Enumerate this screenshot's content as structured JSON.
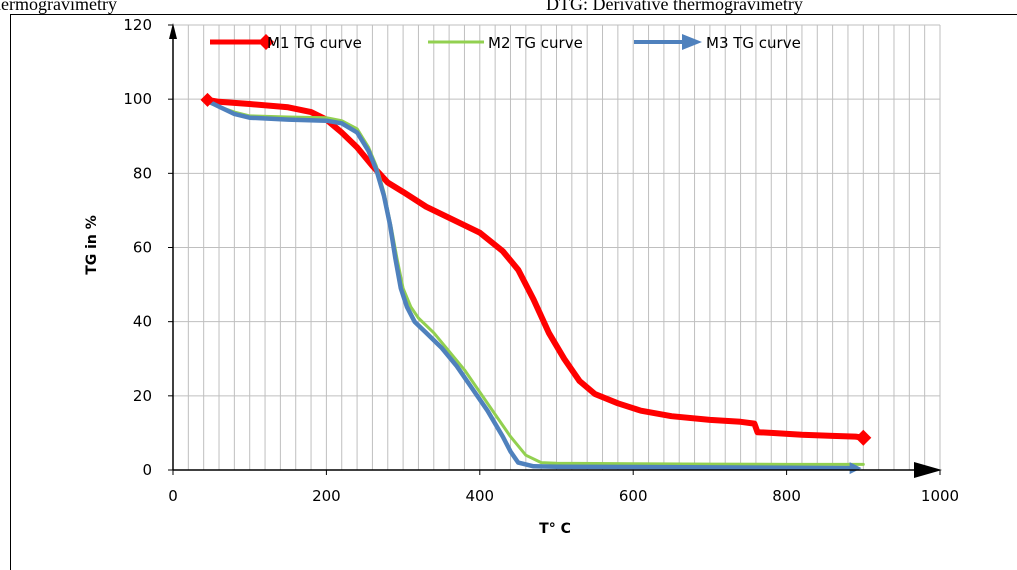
{
  "captions": {
    "left": "hermogravimetry",
    "right": "DTG: Derivative thermogravimetry"
  },
  "colors": {
    "M1": "#ff0000",
    "M2": "#92d050",
    "M3": "#4f81bd",
    "grid": "#bfbfbf",
    "axis": "#000000"
  },
  "chart_data": {
    "type": "line",
    "title": "",
    "xlabel": "T° C",
    "ylabel": "TG in %",
    "xlim": [
      0,
      1000
    ],
    "ylim": [
      0,
      120
    ],
    "x_ticks": [
      0,
      200,
      400,
      600,
      800,
      1000
    ],
    "y_ticks": [
      0,
      20,
      40,
      60,
      80,
      100,
      120
    ],
    "x_minor_step": 20,
    "grid": true,
    "legend": "top",
    "series": [
      {
        "name": "M1 TG curve",
        "marker": "diamond-end",
        "points": [
          [
            45,
            99.8
          ],
          [
            60,
            99.3
          ],
          [
            100,
            98.7
          ],
          [
            150,
            97.8
          ],
          [
            180,
            96.5
          ],
          [
            200,
            94.5
          ],
          [
            220,
            91
          ],
          [
            240,
            87
          ],
          [
            260,
            82
          ],
          [
            280,
            77.5
          ],
          [
            300,
            75
          ],
          [
            330,
            71
          ],
          [
            360,
            68
          ],
          [
            400,
            64
          ],
          [
            430,
            59
          ],
          [
            450,
            54
          ],
          [
            470,
            46
          ],
          [
            490,
            37
          ],
          [
            510,
            30
          ],
          [
            530,
            24
          ],
          [
            550,
            20.5
          ],
          [
            580,
            18
          ],
          [
            610,
            16
          ],
          [
            650,
            14.5
          ],
          [
            700,
            13.5
          ],
          [
            740,
            13
          ],
          [
            758,
            12.5
          ],
          [
            762,
            10.2
          ],
          [
            780,
            10
          ],
          [
            820,
            9.5
          ],
          [
            860,
            9.2
          ],
          [
            890,
            9
          ],
          [
            900,
            8.7
          ]
        ]
      },
      {
        "name": "M2 TG curve",
        "marker": "none",
        "points": [
          [
            40,
            99.5
          ],
          [
            60,
            98
          ],
          [
            80,
            96.5
          ],
          [
            100,
            95.5
          ],
          [
            150,
            95.2
          ],
          [
            200,
            95
          ],
          [
            220,
            94.2
          ],
          [
            240,
            92
          ],
          [
            255,
            87
          ],
          [
            265,
            82
          ],
          [
            275,
            75
          ],
          [
            285,
            65
          ],
          [
            292,
            57
          ],
          [
            300,
            49
          ],
          [
            310,
            44
          ],
          [
            320,
            41
          ],
          [
            340,
            37
          ],
          [
            360,
            32
          ],
          [
            380,
            27
          ],
          [
            400,
            21
          ],
          [
            420,
            15
          ],
          [
            440,
            9
          ],
          [
            460,
            4
          ],
          [
            480,
            2
          ],
          [
            500,
            1.8
          ],
          [
            600,
            1.7
          ],
          [
            700,
            1.6
          ],
          [
            800,
            1.5
          ],
          [
            900,
            1.5
          ]
        ]
      },
      {
        "name": "M3 TG curve",
        "marker": "arrow-end",
        "points": [
          [
            45,
            99.5
          ],
          [
            60,
            98
          ],
          [
            80,
            96
          ],
          [
            100,
            95
          ],
          [
            150,
            94.5
          ],
          [
            200,
            94.2
          ],
          [
            220,
            93.5
          ],
          [
            240,
            91
          ],
          [
            255,
            86
          ],
          [
            265,
            81
          ],
          [
            275,
            74
          ],
          [
            283,
            66
          ],
          [
            290,
            57
          ],
          [
            297,
            49
          ],
          [
            305,
            44
          ],
          [
            315,
            40
          ],
          [
            330,
            37
          ],
          [
            350,
            33
          ],
          [
            370,
            28
          ],
          [
            390,
            22
          ],
          [
            410,
            16
          ],
          [
            430,
            9
          ],
          [
            440,
            5
          ],
          [
            450,
            2
          ],
          [
            470,
            1
          ],
          [
            500,
            0.9
          ],
          [
            600,
            0.8
          ],
          [
            700,
            0.7
          ],
          [
            800,
            0.6
          ],
          [
            890,
            0.5
          ]
        ]
      }
    ]
  }
}
